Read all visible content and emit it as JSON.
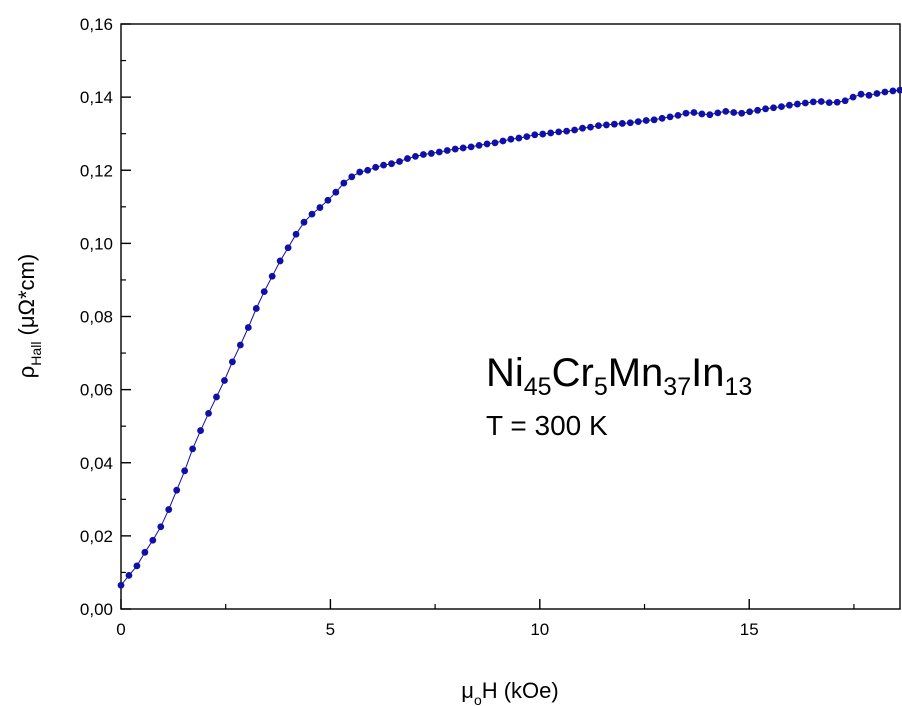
{
  "chart_data": {
    "type": "scatter",
    "title": "",
    "xlabel": {
      "main": "μ",
      "sub": "o",
      "rest": "H (kOe)"
    },
    "ylabel": {
      "main": "ρ",
      "sub": "Hall",
      "rest": " (μΩ*cm)"
    },
    "xlim": [
      0,
      18.6
    ],
    "ylim": [
      0,
      0.16
    ],
    "x_ticks": [
      0,
      5,
      10,
      15
    ],
    "x_tick_labels": [
      "0",
      "5",
      "10",
      "15"
    ],
    "y_ticks": [
      0,
      0.02,
      0.04,
      0.06,
      0.08,
      0.1,
      0.12,
      0.14,
      0.16
    ],
    "y_tick_labels": [
      "0,00",
      "0,02",
      "0,04",
      "0,06",
      "0,08",
      "0,10",
      "0,12",
      "0,14",
      "0,16"
    ],
    "grid": false,
    "legend": "none",
    "series_color": "#1010a8",
    "annotation": {
      "formula": [
        {
          "t": "Ni",
          "sub": false
        },
        {
          "t": "45",
          "sub": true
        },
        {
          "t": "Cr",
          "sub": false
        },
        {
          "t": "5",
          "sub": true
        },
        {
          "t": "Mn",
          "sub": false
        },
        {
          "t": "37",
          "sub": true
        },
        {
          "t": "In",
          "sub": false
        },
        {
          "t": "13",
          "sub": true
        }
      ],
      "temperature": "T = 300 K"
    },
    "series": [
      {
        "x": [
          0.0,
          0.19,
          0.38,
          0.57,
          0.76,
          0.95,
          1.14,
          1.33,
          1.52,
          1.71,
          1.9,
          2.09,
          2.28,
          2.47,
          2.66,
          2.85,
          3.04,
          3.23,
          3.42,
          3.61,
          3.8,
          3.99,
          4.18,
          4.37,
          4.56,
          4.75,
          4.94,
          5.13,
          5.32,
          5.51,
          5.7,
          5.89,
          6.08,
          6.27,
          6.46,
          6.65,
          6.84,
          7.03,
          7.22,
          7.41,
          7.6,
          7.79,
          7.98,
          8.17,
          8.36,
          8.55,
          8.74,
          8.93,
          9.12,
          9.31,
          9.5,
          9.69,
          9.88,
          10.07,
          10.26,
          10.45,
          10.64,
          10.83,
          11.02,
          11.21,
          11.4,
          11.59,
          11.78,
          11.97,
          12.16,
          12.35,
          12.54,
          12.73,
          12.92,
          13.11,
          13.3,
          13.49,
          13.68,
          13.87,
          14.06,
          14.25,
          14.44,
          14.63,
          14.82,
          15.01,
          15.2,
          15.39,
          15.58,
          15.77,
          15.96,
          16.15,
          16.34,
          16.53,
          16.72,
          16.91,
          17.1,
          17.29,
          17.48,
          17.67,
          17.86,
          18.05,
          18.24,
          18.43,
          18.6
        ],
        "y": [
          0.0065,
          0.0092,
          0.0118,
          0.0155,
          0.0188,
          0.0225,
          0.0272,
          0.0325,
          0.0378,
          0.0438,
          0.0488,
          0.0535,
          0.058,
          0.0625,
          0.0676,
          0.0722,
          0.077,
          0.0822,
          0.0868,
          0.091,
          0.0952,
          0.0988,
          0.1025,
          0.1058,
          0.108,
          0.1098,
          0.1118,
          0.114,
          0.1165,
          0.1182,
          0.1195,
          0.12,
          0.1208,
          0.1214,
          0.1218,
          0.1224,
          0.1232,
          0.1238,
          0.1243,
          0.1246,
          0.125,
          0.1254,
          0.1258,
          0.1261,
          0.1264,
          0.1268,
          0.1272,
          0.1275,
          0.128,
          0.1285,
          0.1288,
          0.1292,
          0.1297,
          0.1299,
          0.1302,
          0.1305,
          0.1307,
          0.131,
          0.1315,
          0.1318,
          0.1322,
          0.1324,
          0.1326,
          0.1328,
          0.133,
          0.1333,
          0.1336,
          0.1338,
          0.1342,
          0.1346,
          0.135,
          0.1356,
          0.1358,
          0.1354,
          0.1352,
          0.1357,
          0.1361,
          0.1358,
          0.1356,
          0.136,
          0.1364,
          0.1368,
          0.1371,
          0.1374,
          0.1378,
          0.1381,
          0.1384,
          0.1387,
          0.1388,
          0.1385,
          0.1386,
          0.139,
          0.14,
          0.1408,
          0.1405,
          0.141,
          0.1414,
          0.1417,
          0.1419
        ]
      }
    ]
  }
}
